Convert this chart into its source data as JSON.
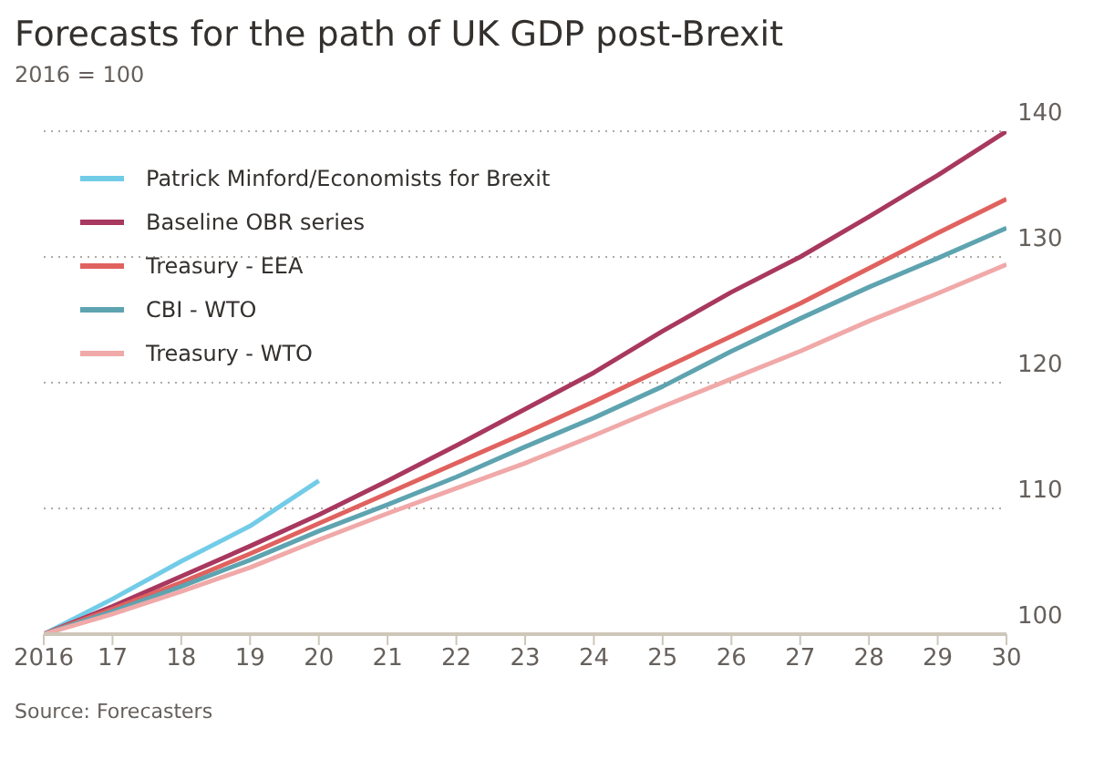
{
  "chart_data": {
    "type": "line",
    "title": "Forecasts for the path of UK GDP post-Brexit",
    "subtitle": "2016 = 100",
    "annotations": [
      "Source: Forecasters"
    ],
    "x": [
      2016,
      2017,
      2018,
      2019,
      2020,
      2021,
      2022,
      2023,
      2024,
      2025,
      2026,
      2027,
      2028,
      2029,
      2030
    ],
    "xlim": [
      2016,
      2030
    ],
    "xticks": [
      {
        "value": 2016,
        "label": "2016"
      },
      {
        "value": 2017,
        "label": "17"
      },
      {
        "value": 2018,
        "label": "18"
      },
      {
        "value": 2019,
        "label": "19"
      },
      {
        "value": 2020,
        "label": "20"
      },
      {
        "value": 2021,
        "label": "21"
      },
      {
        "value": 2022,
        "label": "22"
      },
      {
        "value": 2023,
        "label": "23"
      },
      {
        "value": 2024,
        "label": "24"
      },
      {
        "value": 2025,
        "label": "25"
      },
      {
        "value": 2026,
        "label": "26"
      },
      {
        "value": 2027,
        "label": "27"
      },
      {
        "value": 2028,
        "label": "28"
      },
      {
        "value": 2029,
        "label": "29"
      },
      {
        "value": 2030,
        "label": "30"
      }
    ],
    "ylim": [
      100,
      140
    ],
    "yticks": [
      100,
      110,
      120,
      130,
      140
    ],
    "grid": "y",
    "legend": "top left",
    "marker": "none",
    "line_style": "solid",
    "series": [
      {
        "name": "Patrick Minford/Economists for Brexit",
        "color": "#72cce8",
        "values": [
          100,
          102.8,
          105.8,
          108.6,
          112.2,
          null,
          null,
          null,
          null,
          null,
          null,
          null,
          null,
          null,
          null
        ]
      },
      {
        "name": "Baseline OBR series",
        "color": "#a8385f",
        "values": [
          100,
          102.2,
          104.6,
          107.0,
          109.5,
          112.2,
          115.0,
          117.9,
          120.8,
          124.1,
          127.2,
          130.0,
          133.2,
          136.5,
          140.0
        ]
      },
      {
        "name": "Treasury - EEA",
        "color": "#e0625f",
        "values": [
          100,
          102.0,
          104.1,
          106.4,
          108.8,
          111.2,
          113.6,
          116.0,
          118.5,
          121.1,
          123.7,
          126.3,
          129.1,
          131.9,
          134.6
        ]
      },
      {
        "name": "CBI - WTO",
        "color": "#5ea3b0",
        "values": [
          100,
          101.8,
          103.8,
          105.9,
          108.2,
          110.3,
          112.5,
          114.9,
          117.2,
          119.7,
          122.5,
          125.1,
          127.6,
          129.9,
          132.3
        ]
      },
      {
        "name": "Treasury - WTO",
        "color": "#f0a9a8",
        "values": [
          100,
          101.6,
          103.4,
          105.3,
          107.5,
          109.6,
          111.6,
          113.6,
          115.8,
          118.1,
          120.3,
          122.5,
          124.9,
          127.1,
          129.4
        ]
      }
    ]
  }
}
